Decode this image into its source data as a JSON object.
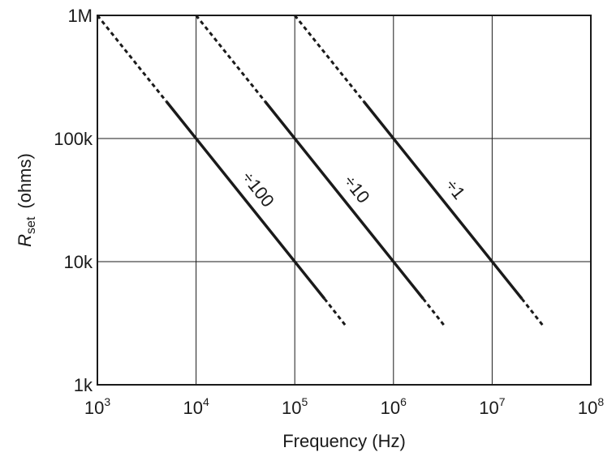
{
  "chart_data": {
    "type": "line",
    "x_scale": "log",
    "y_scale": "log",
    "xlim": [
      1000,
      100000000
    ],
    "ylim": [
      1000,
      1000000
    ],
    "grid": true,
    "xlabel": "Frequency (Hz)",
    "ylabel": {
      "symbol": "R",
      "subscript": "set",
      "unit": "(ohms)"
    },
    "x_tick_labels": [
      {
        "value": 1000,
        "base": "10",
        "exp": "3"
      },
      {
        "value": 10000,
        "base": "10",
        "exp": "4"
      },
      {
        "value": 100000,
        "base": "10",
        "exp": "5"
      },
      {
        "value": 1000000,
        "base": "10",
        "exp": "6"
      },
      {
        "value": 10000000,
        "base": "10",
        "exp": "7"
      },
      {
        "value": 100000000,
        "base": "10",
        "exp": "8"
      }
    ],
    "y_tick_labels": [
      {
        "value": 1000,
        "label": "1k"
      },
      {
        "value": 10000,
        "label": "10k"
      },
      {
        "value": 100000,
        "label": "100k"
      },
      {
        "value": 1000000,
        "label": "1M"
      }
    ],
    "series": [
      {
        "name": "÷100",
        "dotted": [
          [
            1000,
            1000000
          ],
          [
            5000,
            200000
          ]
        ],
        "solid": [
          [
            5000,
            200000
          ],
          [
            200000,
            5000
          ]
        ],
        "dotted_end": [
          [
            200000,
            5000
          ],
          [
            330000,
            3000
          ]
        ]
      },
      {
        "name": "÷10",
        "dotted": [
          [
            10000,
            1000000
          ],
          [
            50000,
            200000
          ]
        ],
        "solid": [
          [
            50000,
            200000
          ],
          [
            2000000,
            5000
          ]
        ],
        "dotted_end": [
          [
            2000000,
            5000
          ],
          [
            3300000,
            3000
          ]
        ]
      },
      {
        "name": "÷1",
        "dotted": [
          [
            100000,
            1000000
          ],
          [
            500000,
            200000
          ]
        ],
        "solid": [
          [
            500000,
            200000
          ],
          [
            20000000,
            5000
          ]
        ],
        "dotted_end": [
          [
            20000000,
            5000
          ],
          [
            33000000,
            3000
          ]
        ]
      }
    ]
  }
}
